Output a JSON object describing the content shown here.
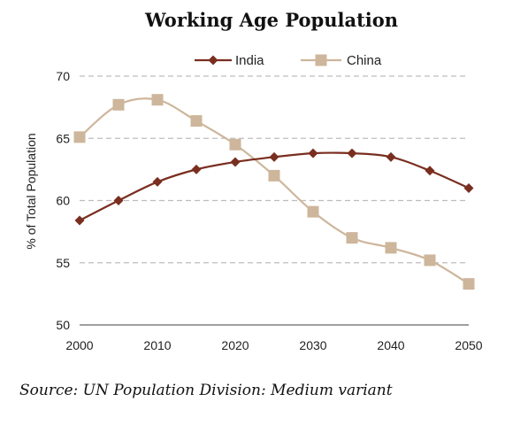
{
  "chart_data": {
    "type": "line",
    "title": "Working Age Population",
    "ylabel": "% of Total Population",
    "xlabel": "",
    "x": [
      2000,
      2005,
      2010,
      2015,
      2020,
      2025,
      2030,
      2035,
      2040,
      2045,
      2050
    ],
    "xticks": [
      2000,
      2010,
      2020,
      2030,
      2040,
      2050
    ],
    "yticks": [
      50,
      55,
      60,
      65,
      70
    ],
    "xlim": [
      2000,
      2050
    ],
    "ylim": [
      50,
      70
    ],
    "grid": true,
    "legend_position": "top",
    "series": [
      {
        "name": "India",
        "color": "#7a2e1f",
        "marker": "diamond",
        "values": [
          58.4,
          60.0,
          61.5,
          62.5,
          63.1,
          63.5,
          63.8,
          63.8,
          63.5,
          62.4,
          61.0
        ]
      },
      {
        "name": "China",
        "color": "#cdb69b",
        "marker": "square",
        "values": [
          65.1,
          67.7,
          68.1,
          66.4,
          64.5,
          62.0,
          59.1,
          57.0,
          56.2,
          55.2,
          53.3
        ]
      }
    ],
    "source": "Source: UN Population Division: Medium variant"
  }
}
